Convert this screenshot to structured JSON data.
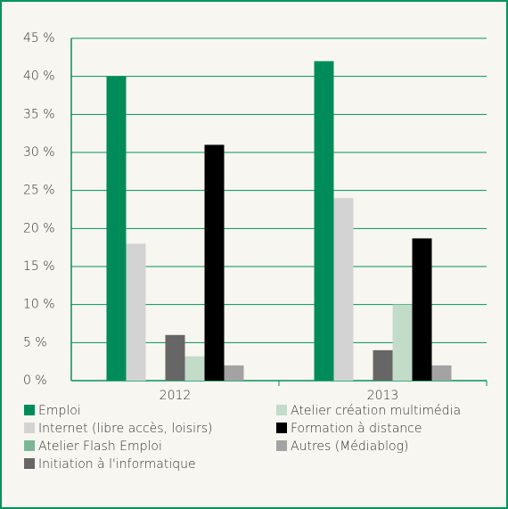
{
  "chart_data": {
    "type": "bar",
    "categories": [
      "2012",
      "2013"
    ],
    "series": [
      {
        "name": "Emploi",
        "color": "#008c5a",
        "values": [
          40,
          42
        ]
      },
      {
        "name": "Internet (libre accès, loisirs)",
        "color": "#d3d3d3",
        "values": [
          18,
          24
        ]
      },
      {
        "name": "Atelier Flash Emploi",
        "color": "#7db597",
        "values": [
          0,
          0
        ]
      },
      {
        "name": "Initiation à l'informatique",
        "color": "#666666",
        "values": [
          6,
          4
        ]
      },
      {
        "name": "Atelier création multimédia",
        "color": "#c3dbc9",
        "values": [
          3.2,
          10
        ]
      },
      {
        "name": "Formation à distance",
        "color": "#000000",
        "values": [
          31,
          18.7
        ]
      },
      {
        "name": "Autres (Médiablog)",
        "color": "#a3a3a3",
        "values": [
          2,
          2
        ]
      }
    ],
    "ylim": [
      0,
      45
    ],
    "yticks": [
      {
        "value": 0,
        "label": "0 %"
      },
      {
        "value": 5,
        "label": "5 %"
      },
      {
        "value": 10,
        "label": "10 %"
      },
      {
        "value": 15,
        "label": "15 %"
      },
      {
        "value": 20,
        "label": "20 %"
      },
      {
        "value": 25,
        "label": "25 %"
      },
      {
        "value": 30,
        "label": "30 %"
      },
      {
        "value": 35,
        "label": "35 %"
      },
      {
        "value": 40,
        "label": "40 %"
      },
      {
        "value": 45,
        "label": "45 %"
      }
    ],
    "grid": true
  }
}
